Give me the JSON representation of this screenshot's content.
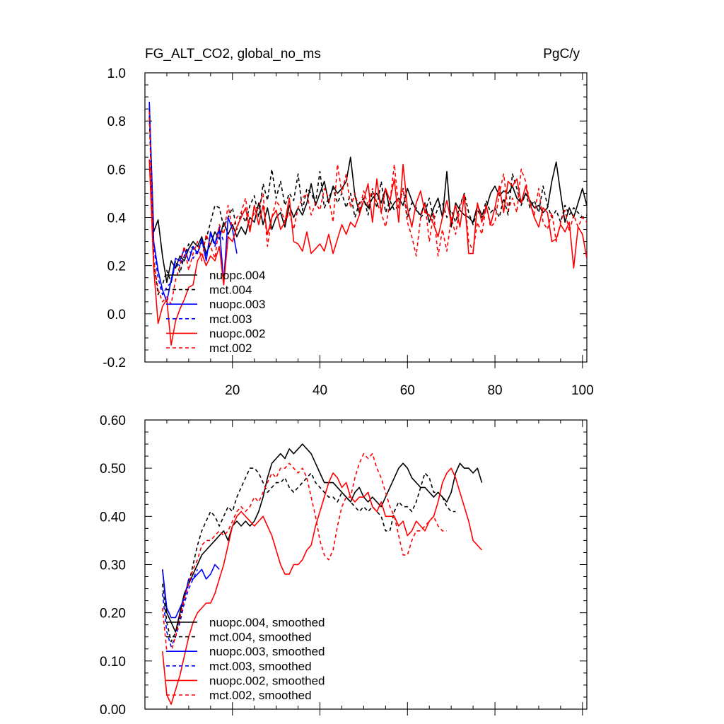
{
  "figure": {
    "title_left": "FG_ALT_CO2, global_no_ms",
    "title_right": "PgC/y"
  },
  "colors": {
    "nuopc_004": "#000000",
    "mct_004": "#000000",
    "nuopc_003": "#0000ff",
    "mct_003": "#0000ff",
    "nuopc_002": "#ff0000",
    "mct_002": "#ff0000"
  },
  "chart_data": [
    {
      "type": "line",
      "title": "FG_ALT_CO2, global_no_ms",
      "units": "PgC/y",
      "xlim": [
        0,
        101
      ],
      "ylim": [
        -0.2,
        1.0
      ],
      "xticks": [
        20,
        40,
        60,
        80,
        100
      ],
      "xtick_labels": [
        "20",
        "40",
        "60",
        "80",
        "100"
      ],
      "yticks": [
        -0.2,
        0.0,
        0.2,
        0.4,
        0.6,
        0.8,
        1.0
      ],
      "ytick_labels": [
        "-0.2",
        "0.0",
        "0.2",
        "0.4",
        "0.6",
        "0.8",
        "1.0"
      ],
      "legend_position": "bottom-left",
      "series": [
        {
          "name": "nuopc.004",
          "color": "#000000",
          "dash": "solid",
          "x_start": 1,
          "values": [
            0.87,
            0.34,
            0.39,
            0.24,
            0.13,
            0.22,
            0.19,
            0.24,
            0.22,
            0.27,
            0.3,
            0.28,
            0.32,
            0.25,
            0.29,
            0.34,
            0.31,
            0.38,
            0.33,
            0.37,
            0.32,
            0.36,
            0.33,
            0.4,
            0.38,
            0.46,
            0.37,
            0.44,
            0.35,
            0.4,
            0.42,
            0.36,
            0.45,
            0.4,
            0.44,
            0.41,
            0.46,
            0.54,
            0.45,
            0.5,
            0.55,
            0.46,
            0.53,
            0.5,
            0.52,
            0.55,
            0.65,
            0.49,
            0.42,
            0.47,
            0.44,
            0.48,
            0.5,
            0.46,
            0.52,
            0.43,
            0.46,
            0.48,
            0.45,
            0.52,
            0.47,
            0.43,
            0.41,
            0.46,
            0.38,
            0.44,
            0.48,
            0.4,
            0.59,
            0.36,
            0.46,
            0.43,
            0.41,
            0.4,
            0.38,
            0.45,
            0.41,
            0.44,
            0.5,
            0.53,
            0.49,
            0.51,
            0.5,
            0.53,
            0.48,
            0.46,
            0.5,
            0.47,
            0.44,
            0.45,
            0.42,
            0.44,
            0.55,
            0.63,
            0.5,
            0.38,
            0.44,
            0.4,
            0.46,
            0.52,
            0.45
          ]
        },
        {
          "name": "mct.004",
          "color": "#000000",
          "dash": "dash",
          "x_start": 1,
          "values": [
            0.82,
            0.22,
            0.08,
            0.12,
            0.18,
            0.13,
            0.22,
            0.17,
            0.24,
            0.29,
            0.27,
            0.25,
            0.3,
            0.31,
            0.38,
            0.45,
            0.44,
            0.36,
            0.4,
            0.44,
            0.35,
            0.42,
            0.38,
            0.45,
            0.49,
            0.4,
            0.54,
            0.47,
            0.6,
            0.48,
            0.55,
            0.45,
            0.5,
            0.47,
            0.58,
            0.43,
            0.52,
            0.5,
            0.46,
            0.59,
            0.44,
            0.48,
            0.52,
            0.46,
            0.5,
            0.44,
            0.5,
            0.4,
            0.46,
            0.48,
            0.41,
            0.51,
            0.44,
            0.55,
            0.42,
            0.47,
            0.43,
            0.45,
            0.52,
            0.4,
            0.46,
            0.44,
            0.4,
            0.42,
            0.48,
            0.39,
            0.44,
            0.46,
            0.4,
            0.43,
            0.38,
            0.45,
            0.5,
            0.42,
            0.37,
            0.43,
            0.4,
            0.47,
            0.42,
            0.44,
            0.4,
            0.48,
            0.41,
            0.58,
            0.52,
            0.45,
            0.5,
            0.44,
            0.47,
            0.42,
            0.53,
            0.45,
            0.4,
            0.43,
            0.38,
            0.45,
            0.41,
            0.44,
            0.42,
            0.4,
            0.41
          ]
        },
        {
          "name": "nuopc.003",
          "color": "#0000ff",
          "dash": "solid",
          "x_start": 1,
          "values": [
            0.88,
            0.3,
            0.18,
            0.1,
            0.05,
            0.14,
            0.23,
            0.22,
            0.27,
            0.22,
            0.28,
            0.25,
            0.31,
            0.22,
            0.34,
            0.29,
            0.36,
            0.13,
            0.4,
            0.35,
            0.25
          ]
        },
        {
          "name": "mct.003",
          "color": "#0000ff",
          "dash": "dash",
          "x_start": 1,
          "values": [
            0.85,
            0.28,
            0.15,
            0.08,
            0.11,
            0.13,
            0.21,
            0.2,
            0.24,
            0.27,
            0.23,
            0.26,
            0.3,
            0.24,
            0.33,
            0.28,
            0.35,
            0.3
          ]
        },
        {
          "name": "nuopc.002",
          "color": "#ff0000",
          "dash": "solid",
          "x_start": 1,
          "values": [
            0.64,
            0.19,
            -0.04,
            0.03,
            0.06,
            -0.13,
            -0.03,
            0.02,
            0.06,
            0.11,
            0.12,
            0.22,
            0.25,
            0.2,
            0.24,
            0.22,
            0.28,
            0.12,
            0.32,
            0.3,
            0.36,
            0.4,
            0.44,
            0.34,
            0.45,
            0.37,
            0.45,
            0.33,
            0.4,
            0.43,
            0.35,
            0.38,
            0.48,
            0.3,
            0.29,
            0.26,
            0.34,
            0.25,
            0.27,
            0.29,
            0.26,
            0.33,
            0.25,
            0.31,
            0.37,
            0.33,
            0.38,
            0.36,
            0.41,
            0.47,
            0.54,
            0.38,
            0.56,
            0.42,
            0.52,
            0.47,
            0.56,
            0.38,
            0.62,
            0.44,
            0.36,
            0.46,
            0.51,
            0.42,
            0.41,
            0.37,
            0.32,
            0.4,
            0.47,
            0.38,
            0.45,
            0.36,
            0.49,
            0.25,
            0.25,
            0.46,
            0.38,
            0.45,
            0.37,
            0.44,
            0.53,
            0.42,
            0.55,
            0.53,
            0.56,
            0.46,
            0.53,
            0.46,
            0.4,
            0.36,
            0.44,
            0.42,
            0.3,
            0.31,
            0.37,
            0.34,
            0.38,
            0.19,
            0.36,
            0.33,
            0.23
          ]
        },
        {
          "name": "mct.002",
          "color": "#ff0000",
          "dash": "dash",
          "x_start": 1,
          "values": [
            0.84,
            0.22,
            0.1,
            0.05,
            0.07,
            0.04,
            0.14,
            0.2,
            0.28,
            0.18,
            0.25,
            0.3,
            0.22,
            0.33,
            0.28,
            0.23,
            0.37,
            0.33,
            0.45,
            0.35,
            0.4,
            0.42,
            0.48,
            0.36,
            0.42,
            0.44,
            0.5,
            0.28,
            0.4,
            0.47,
            0.44,
            0.38,
            0.42,
            0.35,
            0.44,
            0.48,
            0.5,
            0.41,
            0.46,
            0.43,
            0.52,
            0.48,
            0.38,
            0.62,
            0.5,
            0.58,
            0.44,
            0.5,
            0.43,
            0.51,
            0.45,
            0.52,
            0.46,
            0.42,
            0.36,
            0.46,
            0.62,
            0.44,
            0.52,
            0.38,
            0.32,
            0.24,
            0.4,
            0.46,
            0.3,
            0.42,
            0.24,
            0.35,
            0.26,
            0.4,
            0.33,
            0.44,
            0.5,
            0.3,
            0.26,
            0.38,
            0.33,
            0.45,
            0.36,
            0.38,
            0.5,
            0.58,
            0.43,
            0.48,
            0.42,
            0.6,
            0.55,
            0.46,
            0.41,
            0.52,
            0.38,
            0.35,
            0.42,
            0.3,
            0.38,
            0.43,
            0.34,
            0.41,
            0.36,
            0.4,
            0.38
          ]
        }
      ]
    },
    {
      "type": "line",
      "title": "",
      "xlim": [
        0,
        101
      ],
      "ylim": [
        0.0,
        0.6
      ],
      "xticks": [
        20,
        40,
        60,
        80,
        100
      ],
      "yticks": [
        0.0,
        0.1,
        0.2,
        0.3,
        0.4,
        0.5,
        0.6
      ],
      "ytick_labels": [
        "0.00",
        "0.10",
        "0.20",
        "0.30",
        "0.40",
        "0.50",
        "0.60"
      ],
      "legend_position": "bottom-left",
      "series": [
        {
          "name": "nuopc.004, smoothed",
          "color": "#000000",
          "dash": "solid",
          "x_start": 4,
          "values": [
            0.29,
            0.2,
            0.18,
            0.16,
            0.2,
            0.24,
            0.26,
            0.28,
            0.3,
            0.32,
            0.33,
            0.34,
            0.35,
            0.36,
            0.37,
            0.35,
            0.38,
            0.39,
            0.38,
            0.39,
            0.38,
            0.39,
            0.41,
            0.44,
            0.48,
            0.51,
            0.52,
            0.53,
            0.52,
            0.54,
            0.53,
            0.54,
            0.55,
            0.54,
            0.53,
            0.51,
            0.49,
            0.47,
            0.47,
            0.47,
            0.46,
            0.45,
            0.44,
            0.43,
            0.45,
            0.46,
            0.44,
            0.43,
            0.44,
            0.43,
            0.42,
            0.44,
            0.46,
            0.48,
            0.5,
            0.51,
            0.5,
            0.48,
            0.47,
            0.46,
            0.46,
            0.45,
            0.44,
            0.45,
            0.44,
            0.43,
            0.45,
            0.49,
            0.51,
            0.5,
            0.5,
            0.49,
            0.5,
            0.47
          ]
        },
        {
          "name": "mct.004, smoothed",
          "color": "#000000",
          "dash": "dash",
          "x_start": 4,
          "values": [
            0.26,
            0.18,
            0.14,
            0.16,
            0.19,
            0.23,
            0.26,
            0.3,
            0.34,
            0.37,
            0.39,
            0.41,
            0.4,
            0.38,
            0.4,
            0.42,
            0.41,
            0.44,
            0.46,
            0.48,
            0.5,
            0.5,
            0.49,
            0.47,
            0.45,
            0.46,
            0.47,
            0.47,
            0.48,
            0.46,
            0.45,
            0.46,
            0.47,
            0.48,
            0.49,
            0.47,
            0.46,
            0.45,
            0.44,
            0.44,
            0.43,
            0.45,
            0.44,
            0.43,
            0.42,
            0.41,
            0.42,
            0.41,
            0.42,
            0.41,
            0.4,
            0.37,
            0.37,
            0.41,
            0.43,
            0.42,
            0.42,
            0.41,
            0.43,
            0.46,
            0.49,
            0.48,
            0.45,
            0.45,
            0.44,
            0.42,
            0.41,
            0.41
          ]
        },
        {
          "name": "nuopc.003, smoothed",
          "color": "#0000ff",
          "dash": "solid",
          "x_start": 4,
          "values": [
            0.29,
            0.21,
            0.19,
            0.19,
            0.21,
            0.23,
            0.27,
            0.27,
            0.28,
            0.29,
            0.27,
            0.28,
            0.3,
            0.29
          ]
        },
        {
          "name": "mct.003, smoothed",
          "color": "#0000ff",
          "dash": "dash",
          "x_start": 4,
          "values": [
            0.24,
            0.16,
            0.13,
            0.15,
            0.18,
            0.22,
            0.25,
            0.27,
            0.29
          ]
        },
        {
          "name": "nuopc.002, smoothed",
          "color": "#ff0000",
          "dash": "solid",
          "x_start": 4,
          "values": [
            0.12,
            0.03,
            0.01,
            0.04,
            0.07,
            0.11,
            0.15,
            0.18,
            0.2,
            0.21,
            0.22,
            0.22,
            0.24,
            0.27,
            0.3,
            0.34,
            0.38,
            0.4,
            0.41,
            0.4,
            0.39,
            0.38,
            0.39,
            0.4,
            0.38,
            0.36,
            0.33,
            0.3,
            0.28,
            0.28,
            0.3,
            0.3,
            0.31,
            0.33,
            0.34,
            0.38,
            0.41,
            0.44,
            0.47,
            0.49,
            0.48,
            0.46,
            0.47,
            0.44,
            0.43,
            0.44,
            0.44,
            0.45,
            0.42,
            0.41,
            0.43,
            0.4,
            0.4,
            0.4,
            0.38,
            0.39,
            0.36,
            0.37,
            0.39,
            0.38,
            0.37,
            0.39,
            0.4,
            0.43,
            0.47,
            0.49,
            0.5,
            0.48,
            0.45,
            0.42,
            0.39,
            0.35,
            0.34,
            0.33
          ]
        },
        {
          "name": "mct.002, smoothed",
          "color": "#ff0000",
          "dash": "dash",
          "x_start": 4,
          "values": [
            0.21,
            0.12,
            0.12,
            0.15,
            0.19,
            0.23,
            0.26,
            0.29,
            0.31,
            0.34,
            0.35,
            0.35,
            0.36,
            0.37,
            0.36,
            0.37,
            0.39,
            0.41,
            0.42,
            0.41,
            0.42,
            0.44,
            0.43,
            0.45,
            0.47,
            0.49,
            0.48,
            0.5,
            0.5,
            0.51,
            0.5,
            0.49,
            0.5,
            0.48,
            0.44,
            0.4,
            0.35,
            0.32,
            0.31,
            0.33,
            0.38,
            0.42,
            0.44,
            0.44,
            0.48,
            0.51,
            0.53,
            0.52,
            0.53,
            0.5,
            0.48,
            0.45,
            0.42,
            0.4,
            0.36,
            0.32,
            0.32,
            0.35,
            0.37,
            0.37,
            0.38,
            0.39,
            0.4,
            0.38,
            0.37,
            0.37
          ]
        }
      ]
    }
  ]
}
